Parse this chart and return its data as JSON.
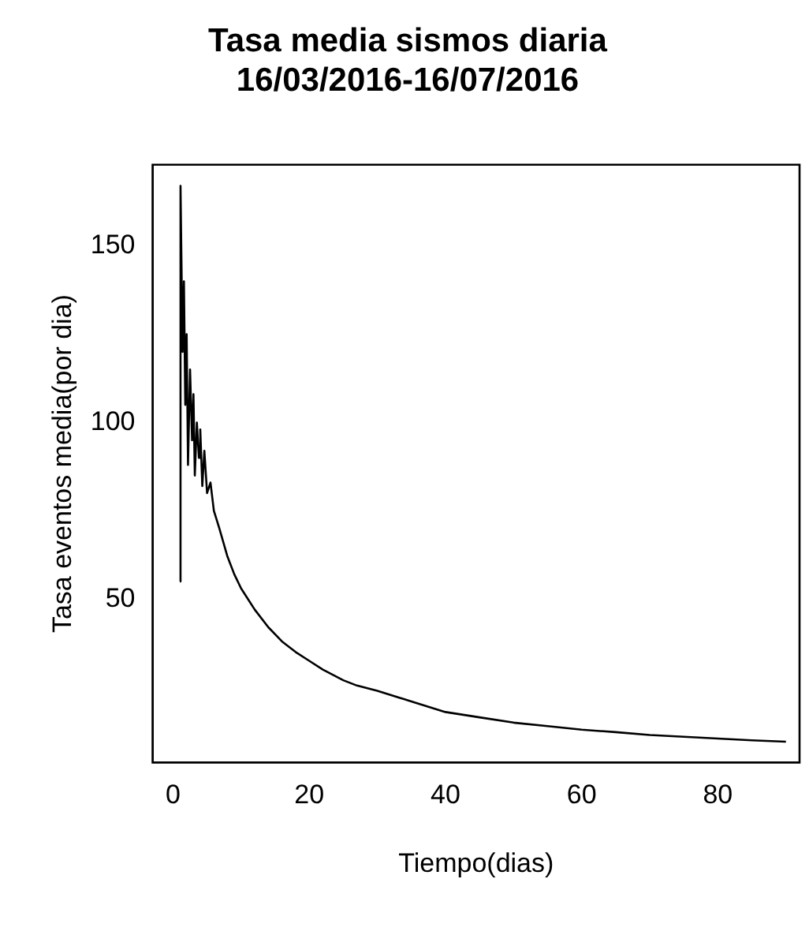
{
  "chart_data": {
    "type": "line",
    "title": "Tasa media sismos diaria\n16/03/2016-16/07/2016",
    "xlabel": "Tiempo(dias)",
    "ylabel": "Tasa eventos media(por dia)",
    "x": [
      1,
      1.1,
      1.4,
      1.6,
      1.8,
      2.0,
      2.2,
      2.5,
      2.8,
      3.0,
      3.2,
      3.5,
      3.8,
      4.0,
      4.3,
      4.6,
      5,
      5.5,
      6,
      6.8,
      8,
      9,
      10,
      12,
      14,
      16,
      18,
      20,
      22,
      25,
      27,
      30,
      35,
      40,
      45,
      50,
      55,
      60,
      65,
      70,
      75,
      80,
      85,
      90
    ],
    "series": [
      {
        "color": "#000000",
        "values": [
          55,
          167,
          120,
          140,
          105,
          125,
          88,
          115,
          95,
          108,
          85,
          100,
          90,
          98,
          82,
          92,
          80,
          83,
          75,
          70,
          62,
          57,
          53,
          47,
          42,
          38,
          35,
          32.5,
          30,
          27,
          25.5,
          24,
          21,
          18,
          16.5,
          15,
          14,
          13,
          12.3,
          11.5,
          11,
          10.5,
          10,
          9.6
        ]
      }
    ],
    "xlim": [
      -3,
      92
    ],
    "xticks": [
      0,
      20,
      40,
      60,
      80
    ],
    "ylim": [
      3.7,
      173
    ],
    "yticks": [
      50,
      100,
      150
    ],
    "grid": false,
    "legend": false,
    "marker": "none",
    "line_style": "solid"
  }
}
